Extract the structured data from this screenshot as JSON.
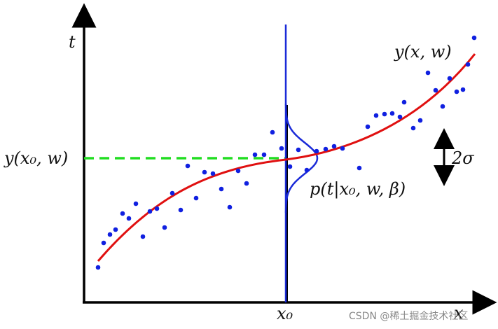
{
  "labels": {
    "t_axis": "t",
    "x_axis": "x",
    "curve": "y(x, w)",
    "level": "y(x₀, w)",
    "sigma": "2σ",
    "density": "p(t|x₀, w, β)",
    "x0": "x₀",
    "watermark": "CSDN @稀土掘金技术社区"
  }
}
